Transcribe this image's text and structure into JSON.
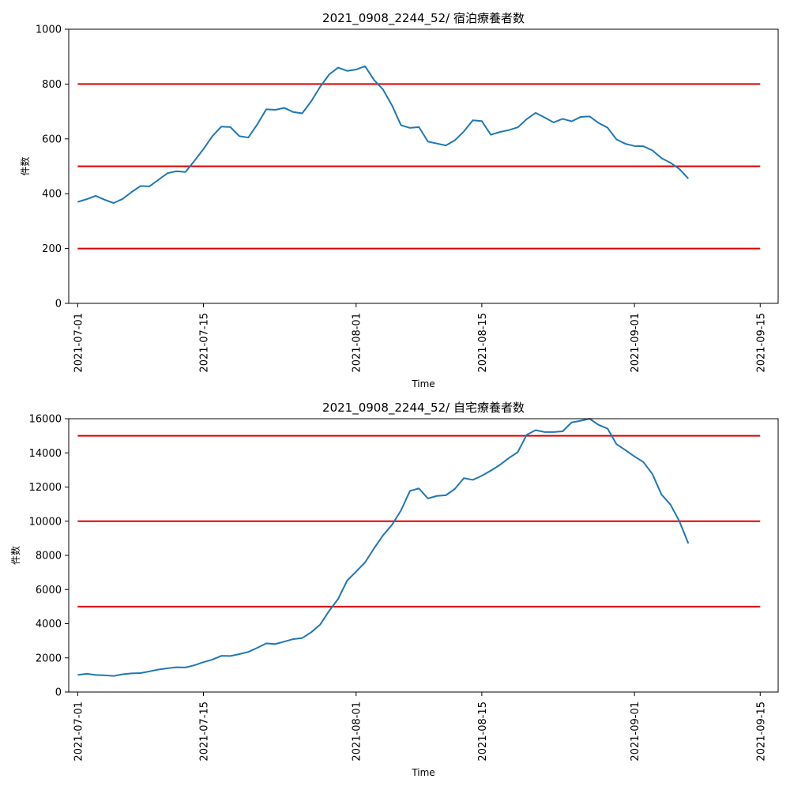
{
  "chart_data": [
    {
      "type": "line",
      "title": "2021_0908_2244_52/ 宿泊療養者数",
      "xlabel": "Time",
      "ylabel": "件数",
      "x_start": "2021-07-01",
      "xlim": [
        -1,
        78
      ],
      "ylim": [
        0,
        1000
      ],
      "yticks": [
        0,
        200,
        400,
        600,
        800,
        1000
      ],
      "xticks": [
        {
          "day": 0,
          "label": "2021-07-01"
        },
        {
          "day": 14,
          "label": "2021-07-15"
        },
        {
          "day": 31,
          "label": "2021-08-01"
        },
        {
          "day": 45,
          "label": "2021-08-15"
        },
        {
          "day": 62,
          "label": "2021-09-01"
        },
        {
          "day": 76,
          "label": "2021-09-15"
        }
      ],
      "thresholds": [
        200,
        500,
        800
      ],
      "threshold_range": [
        0,
        76
      ],
      "series": [
        {
          "name": "宿泊療養者数",
          "color": "#1f77b4",
          "values": [
            370,
            380,
            392,
            378,
            366,
            381,
            406,
            428,
            427,
            451,
            475,
            482,
            479,
            520,
            563,
            610,
            645,
            643,
            610,
            605,
            653,
            708,
            706,
            713,
            698,
            693,
            737,
            790,
            835,
            860,
            848,
            853,
            865,
            815,
            780,
            722,
            650,
            640,
            643,
            590,
            583,
            576,
            595,
            627,
            668,
            665,
            615,
            625,
            632,
            642,
            672,
            695,
            678,
            660,
            673,
            664,
            680,
            682,
            658,
            641,
            598,
            582,
            574,
            573,
            558,
            530,
            513,
            490,
            455
          ]
        }
      ],
      "threshold_color": "#dd0000"
    },
    {
      "type": "line",
      "title": "2021_0908_2244_52/ 自宅療養者数",
      "xlabel": "Time",
      "ylabel": "件数",
      "x_start": "2021-07-01",
      "xlim": [
        -1,
        78
      ],
      "ylim": [
        0,
        16000
      ],
      "yticks": [
        0,
        2000,
        4000,
        6000,
        8000,
        10000,
        12000,
        14000,
        16000
      ],
      "xticks": [
        {
          "day": 0,
          "label": "2021-07-01"
        },
        {
          "day": 14,
          "label": "2021-07-15"
        },
        {
          "day": 31,
          "label": "2021-08-01"
        },
        {
          "day": 45,
          "label": "2021-08-15"
        },
        {
          "day": 62,
          "label": "2021-09-01"
        },
        {
          "day": 76,
          "label": "2021-09-15"
        }
      ],
      "thresholds": [
        5000,
        10000,
        15000
      ],
      "threshold_range": [
        0,
        76
      ],
      "series": [
        {
          "name": "自宅療養者数",
          "color": "#1f77b4",
          "values": [
            1000,
            1070,
            1000,
            980,
            940,
            1040,
            1090,
            1110,
            1210,
            1320,
            1390,
            1450,
            1440,
            1570,
            1750,
            1900,
            2120,
            2110,
            2220,
            2350,
            2590,
            2850,
            2810,
            2950,
            3100,
            3160,
            3500,
            3950,
            4750,
            5450,
            6520,
            7050,
            7590,
            8410,
            9170,
            9790,
            10630,
            11770,
            11920,
            11330,
            11480,
            11520,
            11890,
            12520,
            12420,
            12660,
            12960,
            13290,
            13690,
            14040,
            15060,
            15330,
            15220,
            15220,
            15260,
            15780,
            15880,
            16000,
            15640,
            15420,
            14510,
            14160,
            13790,
            13460,
            12760,
            11570,
            10980,
            10000,
            8700
          ]
        }
      ],
      "threshold_color": "#dd0000"
    }
  ]
}
